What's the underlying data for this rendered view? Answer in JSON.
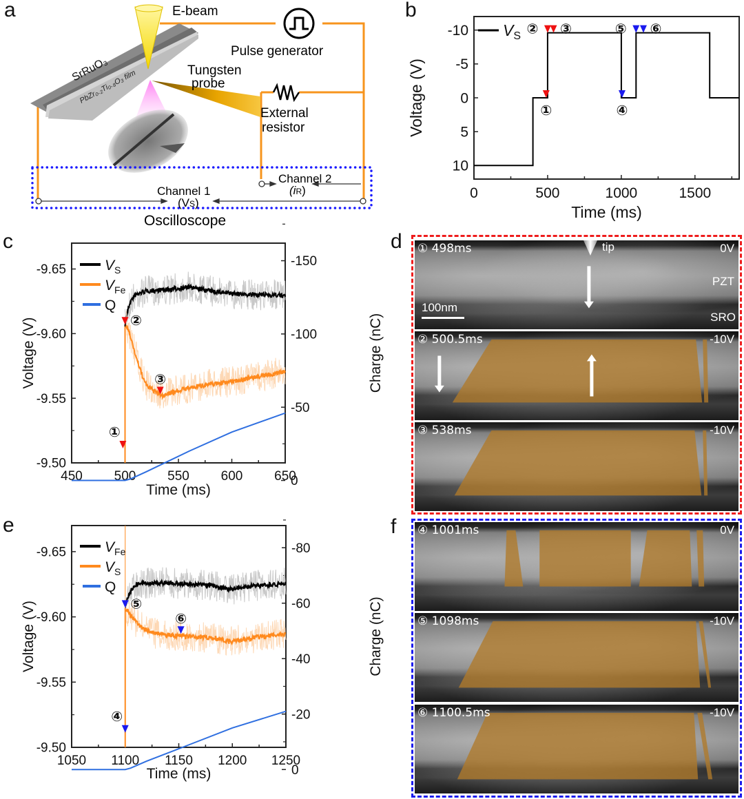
{
  "panels": {
    "a": {
      "letter": "a",
      "labels": {
        "ebeam": "E-beam",
        "pulse_generator": "Pulse generator",
        "tungsten": "Tungsten",
        "probe": "probe",
        "external": "External",
        "resistor": "resistor",
        "srruo3": "SrRuO₃",
        "film": "PbZr₀.₂Ti₀.₈O₃ film",
        "channel1": "Channel 1",
        "channel1_sub": "(V",
        "channel1_sub2": "S",
        "channel2": "Channel 2",
        "channel2_sub": "(i",
        "channel2_sub2": "R",
        "oscilloscope": "Oscilloscope"
      },
      "colors": {
        "wire": "#f7941d",
        "scope_box": "#1a1aff",
        "beam": "#ffe600",
        "probe": "#e8a400"
      }
    },
    "b": {
      "letter": "b"
    },
    "c": {
      "letter": "c"
    },
    "d": {
      "letter": "d",
      "border_color": "#ee1c1c",
      "frames": [
        {
          "marker": "①",
          "time": "498ms",
          "voltage": "0V",
          "tip": "tip",
          "pzt": "PZT",
          "sro": "SRO",
          "scale": "100nm"
        },
        {
          "marker": "②",
          "time": "500.5ms",
          "voltage": "-10V"
        },
        {
          "marker": "③",
          "time": "538ms",
          "voltage": "-10V"
        }
      ]
    },
    "e": {
      "letter": "e"
    },
    "f": {
      "letter": "f",
      "border_color": "#1a1aee",
      "frames": [
        {
          "marker": "④",
          "time": "1001ms",
          "voltage": "0V"
        },
        {
          "marker": "⑤",
          "time": "1098ms",
          "voltage": "-10V"
        },
        {
          "marker": "⑥",
          "time": "1100.5ms",
          "voltage": "-10V"
        }
      ]
    },
    "domain_color": "#b07a2a"
  },
  "chart_data": [
    {
      "id": "b",
      "type": "line",
      "title": "",
      "xlabel": "Time (ms)",
      "ylabel": "Voltage (V)",
      "xlim": [
        0,
        1800
      ],
      "ylim": [
        12,
        -12
      ],
      "y_inverted": true,
      "xticks": [
        0,
        500,
        1000,
        1500
      ],
      "yticks": [
        -10,
        -5,
        0,
        5,
        10
      ],
      "legend": [
        {
          "name": "V",
          "sub": "S",
          "color": "#000000"
        }
      ],
      "legend_position": "top-left",
      "series": [
        {
          "name": "VS",
          "color": "#000000",
          "x": [
            0,
            400,
            400,
            500,
            500,
            1000,
            1000,
            1100,
            1100,
            1600,
            1600,
            1800
          ],
          "y": [
            10,
            10,
            0,
            0,
            -9.6,
            -9.6,
            0,
            0,
            -9.6,
            -9.6,
            0,
            0
          ]
        }
      ],
      "markers": [
        {
          "label": "①",
          "x": 490,
          "y": 0,
          "color": "#ee1111",
          "label_pos": "below"
        },
        {
          "label": "②",
          "x": 500,
          "y": -9.6,
          "color": "#ee1111",
          "label_pos": "left"
        },
        {
          "label": "③",
          "x": 540,
          "y": -9.6,
          "color": "#ee1111",
          "label_pos": "right"
        },
        {
          "label": "④",
          "x": 1005,
          "y": 0,
          "color": "#1a1aee",
          "label_pos": "below"
        },
        {
          "label": "⑤",
          "x": 1100,
          "y": -9.6,
          "color": "#1a1aee",
          "label_pos": "left"
        },
        {
          "label": "⑥",
          "x": 1150,
          "y": -9.6,
          "color": "#1a1aee",
          "label_pos": "right"
        }
      ]
    },
    {
      "id": "c",
      "type": "line",
      "xlabel": "Time (ms)",
      "ylabel": "Voltage (V)",
      "y2label": "Charge (nC)",
      "xlim": [
        450,
        650
      ],
      "ylim": [
        -9.5,
        -9.67
      ],
      "y2lim": [
        -12,
        -162
      ],
      "xticks": [
        450,
        500,
        550,
        600,
        650
      ],
      "yticks": [
        -9.65,
        -9.6,
        -9.55,
        -9.5
      ],
      "ytick_labels": [
        "-9.65",
        "-9.60",
        "-9.55",
        "-9.50"
      ],
      "y2ticks": [
        -150,
        -100,
        -50,
        0
      ],
      "legend": [
        {
          "name": "V",
          "sub": "S",
          "color": "#000000"
        },
        {
          "name": "V",
          "sub": "Fe",
          "color": "#ff8a1e"
        },
        {
          "name": "Q",
          "sub": "",
          "color": "#2f6fe0"
        }
      ],
      "legend_position": "top-left",
      "series": [
        {
          "name": "VS",
          "axis": "left",
          "color": "#000000",
          "noise_color": "#c8c8c8",
          "x": [
            500,
            502,
            505,
            510,
            520,
            540,
            560,
            580,
            600,
            620,
            640,
            650
          ],
          "y": [
            -9.607,
            -9.616,
            -9.625,
            -9.63,
            -9.633,
            -9.634,
            -9.636,
            -9.633,
            -9.631,
            -9.63,
            -9.63,
            -9.629
          ]
        },
        {
          "name": "VFe",
          "axis": "left",
          "color": "#ff8a1e",
          "noise_color": "#fdd8b5",
          "x": [
            500,
            501,
            505,
            510,
            515,
            520,
            530,
            535,
            545,
            560,
            580,
            600,
            620,
            640,
            650
          ],
          "y": [
            -9.5,
            -9.606,
            -9.598,
            -9.583,
            -9.57,
            -9.56,
            -9.554,
            -9.552,
            -9.555,
            -9.558,
            -9.561,
            -9.563,
            -9.566,
            -9.569,
            -9.571
          ]
        },
        {
          "name": "Q",
          "axis": "right",
          "color": "#2f6fe0",
          "x": [
            450,
            500,
            505,
            520,
            560,
            600,
            650
          ],
          "y": [
            0,
            0,
            -1,
            -6,
            -20,
            -33,
            -46
          ]
        }
      ],
      "vertical_line": {
        "x": 500,
        "color": "#ff8a1e"
      },
      "markers": [
        {
          "label": "①",
          "x": 498,
          "axis": "left",
          "y": -9.5112,
          "color": "#ee1111",
          "label_pos": "above-left"
        },
        {
          "label": "②",
          "x": 500,
          "axis": "left",
          "y": -9.607,
          "color": "#ee1111",
          "label_pos": "right"
        },
        {
          "label": "③",
          "x": 533,
          "axis": "left",
          "y": -9.553,
          "color": "#ee1111",
          "label_pos": "above"
        }
      ]
    },
    {
      "id": "e",
      "type": "line",
      "xlabel": "Time (ms)",
      "ylabel": "Voltage (V)",
      "y2label": "Charge (nC)",
      "xlim": [
        1050,
        1250
      ],
      "ylim": [
        -9.5,
        -9.67
      ],
      "y2lim": [
        -8,
        -88
      ],
      "xticks": [
        1050,
        1100,
        1150,
        1200,
        1250
      ],
      "yticks": [
        -9.65,
        -9.6,
        -9.55,
        -9.5
      ],
      "ytick_labels": [
        "-9.65",
        "-9.60",
        "-9.55",
        "-9.50"
      ],
      "y2ticks": [
        -80,
        -60,
        -40,
        -20,
        0
      ],
      "legend": [
        {
          "name": "V",
          "sub": "Fe",
          "color": "#000000"
        },
        {
          "name": "V",
          "sub": "S",
          "color": "#ff8a1e"
        },
        {
          "name": "Q",
          "sub": "",
          "color": "#2f6fe0"
        }
      ],
      "legend_position": "top-left",
      "series": [
        {
          "name": "VFe",
          "axis": "left",
          "color": "#000000",
          "noise_color": "#c8c8c8",
          "x": [
            1100,
            1102,
            1105,
            1110,
            1120,
            1140,
            1160,
            1180,
            1200,
            1220,
            1240,
            1250
          ],
          "y": [
            -9.608,
            -9.614,
            -9.62,
            -9.625,
            -9.626,
            -9.626,
            -9.625,
            -9.624,
            -9.621,
            -9.624,
            -9.625,
            -9.626
          ]
        },
        {
          "name": "VS",
          "axis": "left",
          "color": "#ff8a1e",
          "noise_color": "#fdd8b5",
          "x": [
            1100,
            1100.5,
            1103,
            1108,
            1115,
            1125,
            1140,
            1155,
            1180,
            1200,
            1220,
            1240,
            1250
          ],
          "y": [
            -9.5,
            -9.606,
            -9.604,
            -9.598,
            -9.592,
            -9.588,
            -9.586,
            -9.585,
            -9.584,
            -9.581,
            -9.584,
            -9.586,
            -9.587
          ]
        },
        {
          "name": "Q",
          "axis": "right",
          "color": "#2f6fe0",
          "x": [
            1050,
            1100,
            1105,
            1120,
            1160,
            1200,
            1250
          ],
          "y": [
            0,
            0,
            -0.5,
            -3,
            -9,
            -15,
            -21
          ]
        }
      ],
      "vertical_line": {
        "x": 1100,
        "color": "#ff8a1e"
      },
      "markers": [
        {
          "label": "④",
          "x": 1100,
          "axis": "left",
          "y": -9.5112,
          "color": "#1a1aee",
          "label_pos": "above-left"
        },
        {
          "label": "⑤",
          "x": 1100,
          "axis": "left",
          "y": -9.607,
          "color": "#1a1aee",
          "label_pos": "right"
        },
        {
          "label": "⑥",
          "x": 1152,
          "axis": "left",
          "y": -9.587,
          "color": "#1a1aee",
          "label_pos": "above"
        }
      ]
    }
  ]
}
